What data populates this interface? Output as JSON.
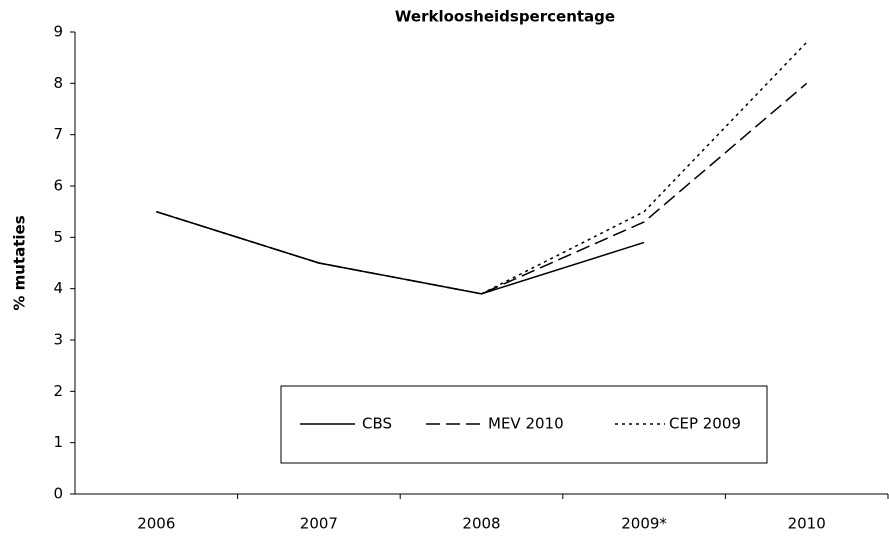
{
  "chart_data": {
    "type": "line",
    "title": "Werkloosheidspercentage",
    "y_label": "% mutaties",
    "categories": [
      "2006",
      "2007",
      "2008",
      "2009*",
      "2010"
    ],
    "series": [
      {
        "name": "CBS",
        "color": "#000000",
        "dash": "solid",
        "values": [
          5.5,
          4.5,
          3.9,
          4.9,
          null
        ]
      },
      {
        "name": "MEV 2010",
        "color": "#000000",
        "dash": "dashed",
        "values": [
          5.5,
          4.5,
          3.9,
          5.3,
          8.0
        ]
      },
      {
        "name": "CEP 2009",
        "color": "#000000",
        "dash": "dotted",
        "values": [
          5.5,
          4.5,
          3.9,
          5.5,
          8.8
        ]
      }
    ],
    "ylim": [
      0,
      9
    ],
    "yticks": [
      0,
      1,
      2,
      3,
      4,
      5,
      6,
      7,
      8,
      9
    ],
    "grid": false,
    "legend": "bottom"
  }
}
